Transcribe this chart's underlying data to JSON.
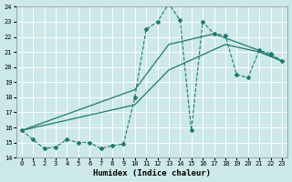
{
  "xlabel": "Humidex (Indice chaleur)",
  "bg_color": "#cce8e8",
  "grid_color": "#b8d8d8",
  "line_color": "#1a7a6e",
  "xlim_min": -0.5,
  "xlim_max": 23.5,
  "ylim_min": 14,
  "ylim_max": 24,
  "xticks": [
    0,
    1,
    2,
    3,
    4,
    5,
    6,
    7,
    8,
    9,
    10,
    11,
    12,
    13,
    14,
    15,
    16,
    17,
    18,
    19,
    20,
    21,
    22,
    23
  ],
  "yticks": [
    14,
    15,
    16,
    17,
    18,
    19,
    20,
    21,
    22,
    23,
    24
  ],
  "dashed_x": [
    0,
    1,
    2,
    3,
    4,
    5,
    6,
    7,
    8,
    9,
    10,
    11,
    12,
    13,
    14,
    15,
    16,
    17,
    18,
    19,
    20,
    21,
    22,
    23
  ],
  "dashed_y": [
    15.8,
    15.2,
    14.6,
    14.7,
    15.2,
    15.0,
    15.0,
    14.6,
    14.8,
    14.9,
    18.0,
    22.5,
    23.0,
    24.2,
    23.1,
    15.8,
    23.0,
    22.2,
    22.1,
    19.5,
    19.3,
    21.1,
    20.9,
    20.4
  ],
  "solid1_x": [
    0,
    10,
    13,
    17,
    21,
    23
  ],
  "solid1_y": [
    15.8,
    18.5,
    21.5,
    22.2,
    21.1,
    20.4
  ],
  "solid2_x": [
    0,
    10,
    13,
    18,
    21,
    23
  ],
  "solid2_y": [
    15.8,
    17.5,
    19.8,
    21.5,
    21.0,
    20.4
  ]
}
